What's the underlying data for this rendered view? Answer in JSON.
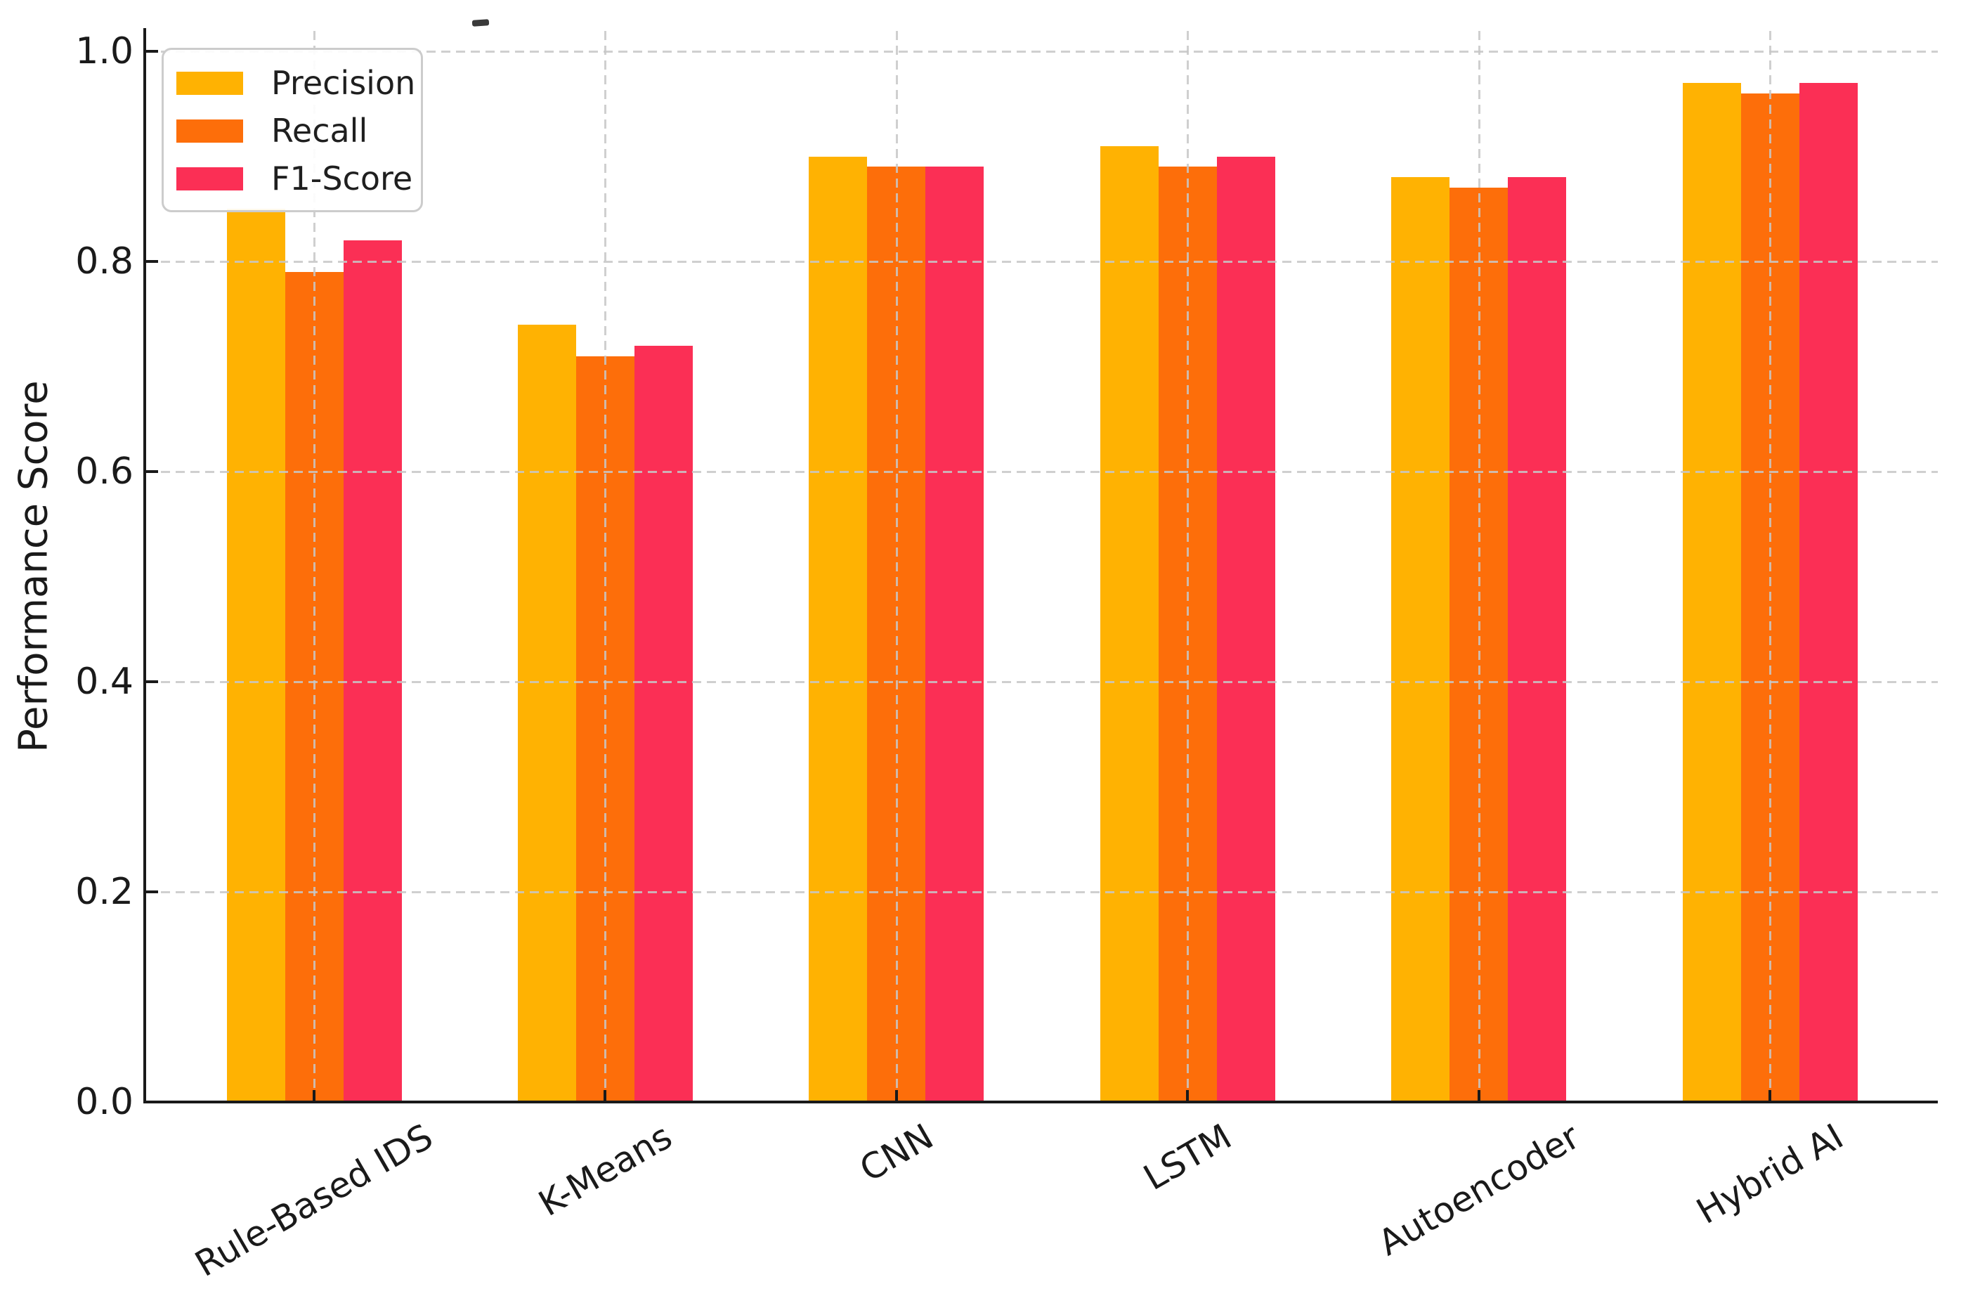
{
  "figure": {
    "y_axis_title": "Performance Score"
  },
  "chart_data": {
    "type": "bar",
    "title": "",
    "xlabel": "",
    "ylabel": "Performance Score",
    "categories": [
      "Rule-Based IDS",
      "K-Means",
      "CNN",
      "LSTM",
      "Autoencoder",
      "Hybrid AI"
    ],
    "series": [
      {
        "name": "Precision",
        "color": "#FFB202",
        "values": [
          0.85,
          0.74,
          0.9,
          0.91,
          0.88,
          0.97
        ]
      },
      {
        "name": "Recall",
        "color": "#FD6E0A",
        "values": [
          0.79,
          0.71,
          0.89,
          0.89,
          0.87,
          0.96
        ]
      },
      {
        "name": "F1-Score",
        "color": "#FB2F55",
        "values": [
          0.82,
          0.72,
          0.89,
          0.9,
          0.88,
          0.97
        ]
      }
    ],
    "ylim": [
      0.0,
      1.02
    ],
    "yticks": [
      {
        "value": 0.0,
        "label": "0.0"
      },
      {
        "value": 0.2,
        "label": "0.2"
      },
      {
        "value": 0.4,
        "label": "0.4"
      },
      {
        "value": 0.6,
        "label": "0.6"
      },
      {
        "value": 0.8,
        "label": "0.8"
      },
      {
        "value": 1.0,
        "label": "1.0"
      }
    ],
    "grid": "dashed",
    "grid_color": "#c7c7c7",
    "legend_position": "upper left",
    "x_tick_rotation_deg": 30,
    "axis_color": "#1a1a1a"
  }
}
